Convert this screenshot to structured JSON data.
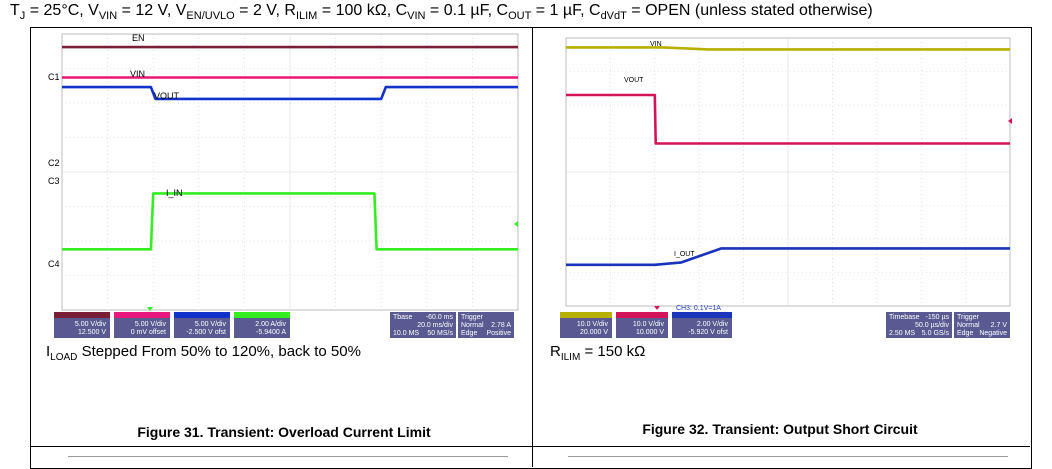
{
  "conditions": {
    "tj": "T",
    "tj_sub": "J",
    "tj_val": " = 25°C, V",
    "vin_sub": "VIN",
    "vin_val": " = 12 V, V",
    "en_sub": "EN/UVLO",
    "en_val": " = 2 V, R",
    "rilim_sub": "ILIM",
    "rilim_val": " = 100 kΩ, C",
    "cvin_sub": "VIN",
    "cvin_val": " = 0.1 µF, C",
    "cout_sub": "OUT",
    "cout_val": " = 1 µF, C",
    "cdvdt_sub": "dVdT",
    "cdvdt_val": " = OPEN (unless stated otherwise)"
  },
  "figure31": {
    "caption": "Figure 31. Transient: Overload Current Limit",
    "note_prefix": "I",
    "note_sub": "LOAD",
    "note_text": " Stepped From 50% to 120%, back to 50%",
    "channel_labels": [
      "C1",
      "C2",
      "C3",
      "C4"
    ],
    "trace_labels": {
      "en": "EN",
      "vin": "VIN",
      "vout": "VOUT",
      "iin": "I_IN"
    },
    "readout": {
      "ch1": [
        "5.00 V/div",
        "12.500 V"
      ],
      "ch2": [
        "5.00 V/div",
        "0 mV offset"
      ],
      "ch3": [
        "5.00 V/div",
        "-2.500 V ofst"
      ],
      "ch4": [
        "2.00 A/div",
        "-5.9400 A"
      ],
      "tbase": [
        "Tbase",
        "-60.0 ms",
        "20.0 ms/div",
        "10.0 MS",
        "50 MS/s"
      ],
      "trigger": [
        "Trigger",
        "Normal",
        "2.78 A",
        "Edge",
        "Positive"
      ]
    },
    "colors": {
      "en": "#7a1f35",
      "vin": "#e8177a",
      "vout": "#1133cc",
      "iin": "#33ee22"
    }
  },
  "figure32": {
    "caption": "Figure 32. Transient: Output Short Circuit",
    "note_prefix": "R",
    "note_sub": "ILIM",
    "note_text": " = 150 kΩ",
    "trace_labels": {
      "vin": "VIN",
      "vout": "VOUT",
      "iout": "I_OUT"
    },
    "cursor_label": "CH3: 0.1V=1A",
    "readout": {
      "ch1": [
        "10.0 V/div",
        "20.000 V"
      ],
      "ch2": [
        "10.0 V/div",
        "10.000 V"
      ],
      "ch3": [
        "2.00 V/div",
        "-5.920 V ofst"
      ],
      "tbase": [
        "Timebase",
        "-150 µs",
        "50.0 µs/div",
        "2.50 MS",
        "5.0 GS/s"
      ],
      "trigger": [
        "Trigger",
        "Normal",
        "2.7 V",
        "Edge",
        "Negative"
      ]
    },
    "colors": {
      "vin": "#b8b000",
      "vout": "#d4145a",
      "iout": "#1a33bb"
    }
  },
  "chart_data": [
    {
      "type": "line",
      "title": "Figure 31. Transient: Overload Current Limit",
      "x_unit": "div (20.0 ms/div)",
      "y_unit": "div",
      "xlim": [
        0,
        10
      ],
      "ylim": [
        0,
        8
      ],
      "grid": true,
      "series": [
        {
          "name": "EN",
          "x": [
            0,
            10
          ],
          "y": [
            7.62,
            7.62
          ]
        },
        {
          "name": "VIN",
          "x": [
            0,
            10
          ],
          "y": [
            6.74,
            6.74
          ]
        },
        {
          "name": "VOUT",
          "x": [
            0,
            1.95,
            2.05,
            7.0,
            7.1,
            10
          ],
          "y": [
            6.46,
            6.46,
            6.12,
            6.12,
            6.46,
            6.46
          ]
        },
        {
          "name": "I_IN",
          "x": [
            0,
            1.95,
            2.0,
            6.85,
            6.9,
            10
          ],
          "y": [
            1.76,
            1.76,
            3.38,
            3.38,
            1.76,
            1.76
          ]
        }
      ]
    },
    {
      "type": "line",
      "title": "Figure 32. Transient: Output Short Circuit",
      "x_unit": "div (50.0 µs/div)",
      "y_unit": "div",
      "xlim": [
        0,
        10
      ],
      "ylim": [
        0,
        8
      ],
      "grid": true,
      "series": [
        {
          "name": "VIN",
          "x": [
            0,
            2.2,
            3.2,
            10
          ],
          "y": [
            7.72,
            7.72,
            7.66,
            7.66
          ]
        },
        {
          "name": "VOUT",
          "x": [
            0,
            2.0,
            2.02,
            10
          ],
          "y": [
            6.3,
            6.3,
            4.85,
            4.85
          ]
        },
        {
          "name": "I_OUT",
          "x": [
            0,
            2.0,
            2.6,
            3.5,
            10
          ],
          "y": [
            1.23,
            1.23,
            1.3,
            1.72,
            1.72
          ]
        }
      ]
    }
  ]
}
